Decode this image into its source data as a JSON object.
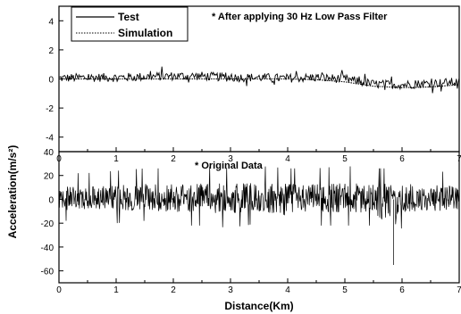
{
  "chart_data": [
    {
      "type": "line",
      "annotation": "* After applying 30 Hz Low Pass Filter",
      "xlim": [
        0,
        7
      ],
      "ylim": [
        -5,
        5
      ],
      "x_ticks": [
        "0",
        "1",
        "2",
        "3",
        "4",
        "5",
        "6",
        "7"
      ],
      "y_ticks": [
        "4",
        "2",
        "0",
        "-2",
        "-4"
      ],
      "y_tick_values": [
        4,
        2,
        0,
        -2,
        -4
      ],
      "legend_position": "top-left",
      "series": [
        {
          "name": "Test",
          "style": "solid",
          "x": [
            0,
            0.5,
            1,
            1.5,
            2,
            2.5,
            3,
            3.5,
            4,
            4.5,
            5,
            5.5,
            6,
            6.5,
            7
          ],
          "y": [
            0.05,
            0.1,
            0.1,
            0.15,
            0.2,
            0.2,
            0.1,
            0.1,
            0.05,
            0.1,
            0.0,
            -0.35,
            -0.4,
            -0.3,
            -0.2
          ]
        },
        {
          "name": "Simulation",
          "style": "dotted",
          "x": [
            0,
            0.5,
            1,
            1.5,
            2,
            2.5,
            3,
            3.5,
            4,
            4.5,
            5,
            5.5,
            6,
            6.5,
            7
          ],
          "y": [
            0.0,
            0.0,
            0.0,
            0.0,
            0.0,
            0.0,
            0.0,
            0.0,
            0.0,
            -0.05,
            -0.2,
            -0.5,
            -0.6,
            -0.55,
            -0.4
          ]
        }
      ]
    },
    {
      "type": "line",
      "annotation": "* Original Data",
      "xlim": [
        0,
        7
      ],
      "ylim": [
        -70,
        40
      ],
      "x_ticks": [
        "0",
        "1",
        "2",
        "3",
        "4",
        "5",
        "6",
        "7"
      ],
      "y_ticks": [
        "40",
        "20",
        "0",
        "-20",
        "-40",
        "-60"
      ],
      "y_tick_values": [
        40,
        20,
        0,
        -20,
        -40,
        -60
      ],
      "xlabel": "Distance(Km)",
      "series": [
        {
          "style": "solid",
          "x": [
            0,
            0.5,
            1,
            1.5,
            2,
            2.5,
            3,
            3.5,
            4,
            4.5,
            5,
            5.5,
            5.85,
            6,
            6.5,
            7
          ],
          "y_min": [
            -18,
            -18,
            -20,
            -18,
            -22,
            -22,
            -24,
            -20,
            -28,
            -22,
            -22,
            -22,
            -55,
            -22,
            -20,
            -18
          ],
          "y_max": [
            22,
            22,
            24,
            26,
            26,
            28,
            26,
            28,
            26,
            26,
            28,
            26,
            26,
            26,
            24,
            22
          ]
        }
      ]
    }
  ],
  "shared_ylabel": "Acceleration(m/s²)",
  "style": {
    "line_color": "#000000",
    "background": "#ffffff"
  }
}
